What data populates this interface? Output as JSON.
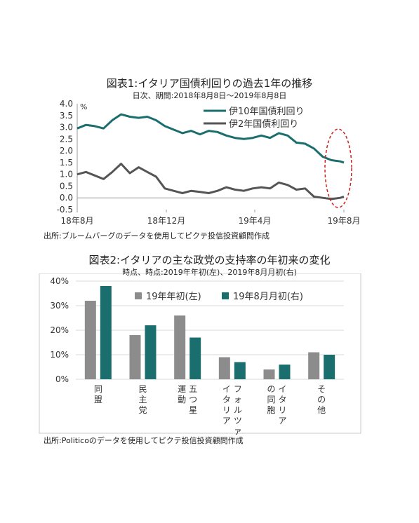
{
  "chart1": {
    "title": "図表1:イタリア国債利回りの過去1年の推移",
    "subtitle": "日次、期間:2018年8月8日～2019年8月8日",
    "unit": "%",
    "source": "出所:ブルームバーグのデータを使用してピクテ投信投資顧問作成",
    "chart_data": {
      "type": "line",
      "x": [
        "2018-08-08",
        "2018-08-20",
        "2018-09-01",
        "2018-09-13",
        "2018-09-25",
        "2018-10-07",
        "2018-10-19",
        "2018-10-31",
        "2018-11-12",
        "2018-11-24",
        "2018-12-06",
        "2018-12-18",
        "2018-12-30",
        "2019-01-11",
        "2019-01-23",
        "2019-02-04",
        "2019-02-16",
        "2019-02-28",
        "2019-03-12",
        "2019-03-24",
        "2019-04-05",
        "2019-04-17",
        "2019-04-29",
        "2019-05-11",
        "2019-05-23",
        "2019-06-04",
        "2019-06-16",
        "2019-06-28",
        "2019-07-10",
        "2019-07-22",
        "2019-08-03",
        "2019-08-08"
      ],
      "xlim": [
        "2018-08-08",
        "2019-08-08"
      ],
      "xticks": [
        "18年8月",
        "18年12月",
        "19年4月",
        "19年8月"
      ],
      "xtick_dates": [
        "2018-08-08",
        "2018-12-08",
        "2019-04-08",
        "2019-08-08"
      ],
      "ylim": [
        -0.5,
        4.0
      ],
      "yticks": [
        "4.0",
        "3.5",
        "3.0",
        "2.5",
        "2.0",
        "1.5",
        "1.0",
        "0.5",
        "0.0",
        "-0.5"
      ],
      "ytick_values": [
        4.0,
        3.5,
        3.0,
        2.5,
        2.0,
        1.5,
        1.0,
        0.5,
        0.0,
        -0.5
      ],
      "series": [
        {
          "name": "伊10年国債利回り",
          "color": "#1b6e6e",
          "values": [
            2.95,
            3.1,
            3.05,
            2.95,
            3.3,
            3.55,
            3.45,
            3.4,
            3.45,
            3.3,
            3.05,
            2.9,
            2.75,
            2.85,
            2.7,
            2.85,
            2.8,
            2.65,
            2.55,
            2.5,
            2.55,
            2.65,
            2.55,
            2.75,
            2.65,
            2.35,
            2.3,
            2.1,
            1.75,
            1.6,
            1.55,
            1.5
          ]
        },
        {
          "name": "伊2年国債利回り",
          "color": "#555555",
          "values": [
            1.0,
            1.1,
            0.95,
            0.8,
            1.1,
            1.45,
            1.05,
            1.3,
            1.1,
            0.9,
            0.4,
            0.3,
            0.2,
            0.3,
            0.25,
            0.2,
            0.3,
            0.45,
            0.35,
            0.3,
            0.4,
            0.45,
            0.4,
            0.65,
            0.55,
            0.35,
            0.4,
            0.05,
            0.0,
            -0.05,
            0.0,
            0.05
          ]
        }
      ]
    }
  },
  "chart2": {
    "title": "図表2:イタリアの主な政党の支持率の年初来の変化",
    "subtitle": "時点、時点:2019年年初(左)、2019年8月月初(右)",
    "source": "出所:Politicoのデータを使用してピクテ投信投資顧問作成",
    "chart_data": {
      "type": "bar",
      "categories": [
        "同盟",
        "民主党",
        "五つ星運動",
        "フォルツァイタリア",
        "イタリアの同胞",
        "その他"
      ],
      "category_lines": [
        [
          "同盟"
        ],
        [
          "民主党"
        ],
        [
          "五つ星",
          "運動"
        ],
        [
          "フォルツァ",
          "イタリア"
        ],
        [
          "イタリア",
          "の同胞"
        ],
        [
          "その他"
        ]
      ],
      "ylim": [
        0,
        40
      ],
      "yticks": [
        "40%",
        "30%",
        "20%",
        "10%",
        "0%"
      ],
      "ytick_values": [
        40,
        30,
        20,
        10,
        0
      ],
      "series": [
        {
          "name": "19年年初(左)",
          "color": "#8c8c8c",
          "values": [
            32,
            18,
            26,
            9,
            4,
            11
          ]
        },
        {
          "name": "19年8月月初(右)",
          "color": "#1b6e6e",
          "values": [
            38,
            22,
            17,
            7,
            6,
            10
          ]
        }
      ]
    }
  }
}
